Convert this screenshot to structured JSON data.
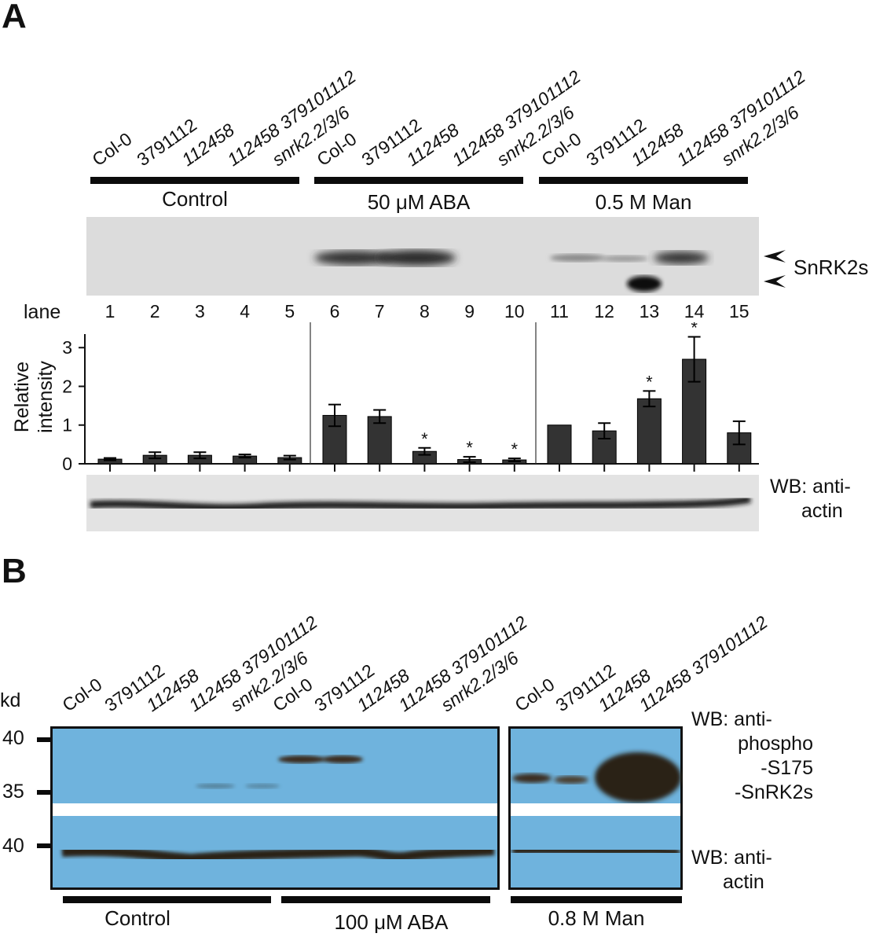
{
  "panelA": {
    "letter": "A",
    "lanes": [
      {
        "genotype": "Col-0",
        "italic": false
      },
      {
        "genotype": "3791112",
        "italic": false
      },
      {
        "genotype": "112458",
        "italic": true
      },
      {
        "genotype": "112458 379101112",
        "italic": true
      },
      {
        "genotype": "snrk2.2/3/6",
        "italic": true
      },
      {
        "genotype": "Col-0",
        "italic": false
      },
      {
        "genotype": "3791112",
        "italic": false
      },
      {
        "genotype": "112458",
        "italic": true
      },
      {
        "genotype": "112458 379101112",
        "italic": true
      },
      {
        "genotype": "snrk2.2/3/6",
        "italic": true
      },
      {
        "genotype": "Col-0",
        "italic": false
      },
      {
        "genotype": "3791112",
        "italic": false
      },
      {
        "genotype": "112458",
        "italic": true
      },
      {
        "genotype": "112458 379101112",
        "italic": true
      },
      {
        "genotype": "snrk2.2/3/6",
        "italic": true
      }
    ],
    "groups": [
      "Control",
      "50 μM ABA",
      "0.5 M Man"
    ],
    "blot_label": "SnRK2s",
    "lane_word": "lane",
    "lane_numbers": [
      "1",
      "2",
      "3",
      "4",
      "5",
      "6",
      "7",
      "8",
      "9",
      "10",
      "11",
      "12",
      "13",
      "14",
      "15"
    ],
    "actin_label_1": "WB: anti-",
    "actin_label_2": "actin"
  },
  "chart_data": {
    "type": "bar",
    "categories": [
      "1",
      "2",
      "3",
      "4",
      "5",
      "6",
      "7",
      "8",
      "9",
      "10",
      "11",
      "12",
      "13",
      "14",
      "15"
    ],
    "values": [
      0.12,
      0.22,
      0.22,
      0.2,
      0.16,
      1.25,
      1.22,
      0.32,
      0.11,
      0.1,
      1.0,
      0.85,
      1.68,
      2.7,
      0.8
    ],
    "errors": [
      0.03,
      0.08,
      0.08,
      0.04,
      0.05,
      0.28,
      0.17,
      0.09,
      0.07,
      0.04,
      0.0,
      0.2,
      0.2,
      0.58,
      0.3
    ],
    "significant": [
      false,
      false,
      false,
      false,
      false,
      false,
      false,
      true,
      true,
      true,
      false,
      false,
      true,
      true,
      false
    ],
    "ylabel": "Relative intensity",
    "yticks": [
      "0",
      "1",
      "2",
      "3"
    ],
    "ylim": [
      0,
      3.35
    ],
    "bar_color": "#333333"
  },
  "panelB": {
    "letter": "B",
    "kd_label": "kd",
    "markers": [
      "40",
      "35",
      "40"
    ],
    "left_lanes": [
      {
        "genotype": "Col-0",
        "italic": false
      },
      {
        "genotype": "3791112",
        "italic": false
      },
      {
        "genotype": "112458",
        "italic": true
      },
      {
        "genotype": "112458 379101112",
        "italic": true
      },
      {
        "genotype": "snrk2.2/3/6",
        "italic": true
      },
      {
        "genotype": "Col-0",
        "italic": false
      },
      {
        "genotype": "3791112",
        "italic": false
      },
      {
        "genotype": "112458",
        "italic": true
      },
      {
        "genotype": "112458 379101112",
        "italic": true
      },
      {
        "genotype": "snrk2.2/3/6",
        "italic": true
      }
    ],
    "right_lanes": [
      {
        "genotype": "Col-0",
        "italic": false
      },
      {
        "genotype": "3791112",
        "italic": false
      },
      {
        "genotype": "112458",
        "italic": true
      },
      {
        "genotype": "112458 379101112",
        "italic": true
      }
    ],
    "phospho_label": [
      "WB: anti-",
      "phospho",
      "-S175",
      "-SnRK2s"
    ],
    "actin_label": [
      "WB: anti-",
      "actin"
    ],
    "groups": [
      "Control",
      "100 μM ABA",
      "0.8 M Man"
    ],
    "film_color": "#6fb3dd"
  }
}
